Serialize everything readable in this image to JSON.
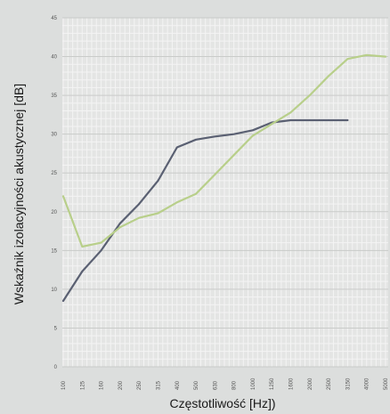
{
  "chart_data": {
    "type": "line",
    "title": "",
    "xlabel": "Częstotliwość [Hz])",
    "ylabel": "Wskaźnik izolacyjności akustycznej [dB]",
    "categories": [
      "100",
      "125",
      "160",
      "200",
      "250",
      "315",
      "400",
      "500",
      "630",
      "800",
      "1000",
      "1250",
      "1600",
      "2000",
      "2500",
      "3150",
      "4000",
      "5000"
    ],
    "ylim": [
      0,
      45
    ],
    "yticks": [
      0,
      5,
      10,
      15,
      20,
      25,
      30,
      35,
      40,
      45
    ],
    "grid": true,
    "series": [
      {
        "color": "#5a6072",
        "values": [
          8.5,
          12.3,
          15.0,
          18.5,
          21.0,
          24.0,
          28.3,
          29.3,
          29.7,
          30.0,
          30.5,
          31.5,
          31.8,
          31.8,
          31.8,
          31.8,
          null,
          null
        ]
      },
      {
        "color": "#b8cf8a",
        "values": [
          22.0,
          15.5,
          16.0,
          18.0,
          19.2,
          19.8,
          21.2,
          22.3,
          24.8,
          27.3,
          29.8,
          31.3,
          32.8,
          35.0,
          37.5,
          39.7,
          40.2,
          40.0
        ]
      }
    ]
  }
}
